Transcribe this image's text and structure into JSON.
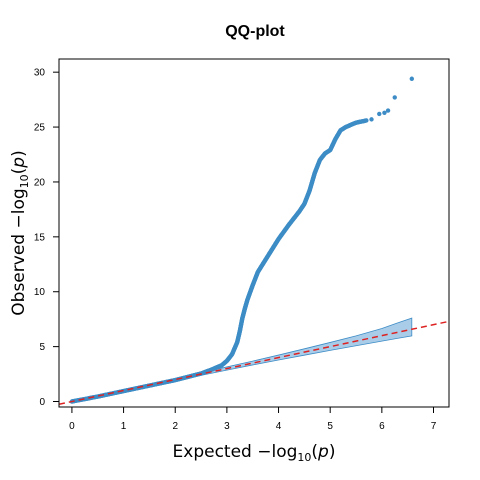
{
  "chart_data": {
    "type": "scatter",
    "title": "QQ-plot",
    "xlabel": {
      "prefix": "Expected  −log",
      "sub": "10",
      "var": "p"
    },
    "ylabel": {
      "prefix": "Observed  −log",
      "sub": "10",
      "var": "p"
    },
    "xlim": [
      -0.25,
      7.3
    ],
    "ylim": [
      -0.5,
      31.2
    ],
    "xticks": [
      "0",
      "1",
      "2",
      "3",
      "4",
      "5",
      "6",
      "7"
    ],
    "yticks": [
      "0",
      "5",
      "10",
      "15",
      "20",
      "25",
      "30"
    ],
    "grid": false,
    "point_color": "#3d8cc6",
    "band_fill": "#a9cde9",
    "band_stroke": "#3d8cc6",
    "reference_line_color": "#dd2222",
    "reference_line": {
      "slope": 1,
      "intercept": 0,
      "style": "dashed"
    },
    "confidence_band": {
      "x": [
        2.0,
        2.5,
        3.0,
        3.5,
        4.0,
        4.5,
        5.0,
        5.5,
        6.0,
        6.3,
        6.58
      ],
      "lower": [
        1.9,
        2.38,
        2.86,
        3.33,
        3.78,
        4.22,
        4.66,
        5.08,
        5.5,
        5.75,
        5.98
      ],
      "upper": [
        2.1,
        2.62,
        3.15,
        3.68,
        4.23,
        4.8,
        5.38,
        5.98,
        6.65,
        7.15,
        7.6
      ]
    },
    "series": [
      {
        "curve": {
          "x": [
            0.0,
            0.5,
            1.0,
            1.5,
            2.0,
            2.5,
            2.7,
            2.9,
            3.0,
            3.1,
            3.2,
            3.25,
            3.3,
            3.35,
            3.4,
            3.5,
            3.6,
            3.8,
            4.0,
            4.2,
            4.4,
            4.5,
            4.6,
            4.7,
            4.8,
            4.9,
            5.0,
            5.1,
            5.2,
            5.3,
            5.5,
            5.7
          ],
          "y": [
            0.0,
            0.45,
            0.95,
            1.45,
            1.95,
            2.55,
            2.9,
            3.3,
            3.7,
            4.3,
            5.4,
            6.4,
            7.6,
            8.5,
            9.3,
            10.6,
            11.8,
            13.3,
            14.8,
            16.1,
            17.3,
            18.0,
            19.2,
            20.8,
            22.0,
            22.6,
            22.9,
            23.9,
            24.7,
            25.0,
            25.4,
            25.6
          ]
        },
        "outliers": {
          "x": [
            5.8,
            5.95,
            6.05,
            6.12,
            6.25,
            6.58
          ],
          "y": [
            25.7,
            26.2,
            26.3,
            26.5,
            27.7,
            29.4
          ]
        }
      }
    ]
  }
}
